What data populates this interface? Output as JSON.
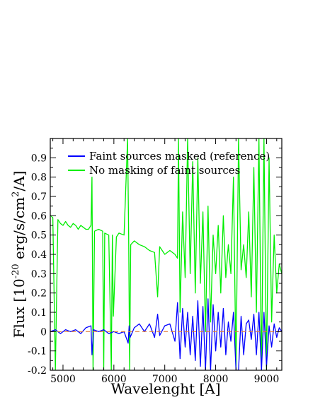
{
  "chart_data": {
    "type": "line",
    "xlabel": "Wavelenght [A]",
    "ylabel": {
      "prefix": "Flux [10",
      "exp1": "-20",
      "middle": " erg/s/cm",
      "exp2": "2",
      "suffix": "/A]"
    },
    "xlim": [
      4750,
      9300
    ],
    "ylim": [
      -0.2,
      1.0
    ],
    "xticks": [
      5000,
      6000,
      7000,
      8000,
      9000
    ],
    "xtick_labels": [
      "5000",
      "6000",
      "7000",
      "8000",
      "9000"
    ],
    "yticks": [
      -0.2,
      -0.1,
      0,
      0.1,
      0.2,
      0.3,
      0.4,
      0.5,
      0.6,
      0.7,
      0.8,
      0.9
    ],
    "ytick_labels": [
      "-0.2",
      "-0.1",
      "0",
      "0.1",
      "0.2",
      "0.3",
      "0.4",
      "0.5",
      "0.6",
      "0.7",
      "0.8",
      "0.9"
    ],
    "zero_line": {
      "y": 0,
      "color": "#e07b39",
      "style": "dashed"
    },
    "legend_position": "top-left",
    "series": [
      {
        "name": "Faint sources masked (reference)",
        "color": "#0000ff",
        "x": [
          4750,
          4850,
          4950,
          5050,
          5150,
          5250,
          5350,
          5450,
          5550,
          5570,
          5600,
          5700,
          5800,
          5900,
          6000,
          6100,
          6200,
          6280,
          6300,
          6320,
          6400,
          6500,
          6600,
          6700,
          6800,
          6860,
          6900,
          7000,
          7100,
          7200,
          7250,
          7300,
          7350,
          7400,
          7450,
          7500,
          7550,
          7600,
          7650,
          7700,
          7750,
          7800,
          7850,
          7900,
          7950,
          8000,
          8050,
          8100,
          8150,
          8200,
          8250,
          8300,
          8350,
          8400,
          8450,
          8500,
          8550,
          8600,
          8650,
          8700,
          8750,
          8800,
          8850,
          8900,
          8950,
          9000,
          9050,
          9100,
          9150,
          9200,
          9250,
          9300
        ],
        "y": [
          0.0,
          0.01,
          -0.01,
          0.01,
          0.0,
          0.01,
          -0.01,
          0.02,
          0.03,
          -0.12,
          0.01,
          0.0,
          0.01,
          -0.01,
          0.0,
          -0.01,
          0.0,
          -0.06,
          0.03,
          -0.03,
          0.02,
          0.04,
          0.0,
          0.04,
          -0.03,
          0.09,
          -0.02,
          0.03,
          0.04,
          -0.05,
          0.15,
          -0.14,
          0.12,
          -0.08,
          0.1,
          -0.12,
          0.08,
          -0.15,
          0.16,
          -0.18,
          0.13,
          -0.2,
          0.17,
          -0.2,
          0.14,
          -0.1,
          0.1,
          -0.08,
          0.12,
          -0.12,
          0.05,
          -0.05,
          0.1,
          -0.2,
          -0.2,
          0.08,
          -0.12,
          0.04,
          0.06,
          -0.04,
          0.09,
          -0.12,
          0.1,
          -0.2,
          0.1,
          -0.18,
          0.03,
          -0.08,
          0.04,
          -0.03,
          0.02,
          0.0
        ]
      },
      {
        "name": "No masking of faint sources",
        "color": "#00ee00",
        "x": [
          4750,
          4760,
          4800,
          4850,
          4900,
          4950,
          5000,
          5050,
          5100,
          5150,
          5200,
          5250,
          5300,
          5350,
          5400,
          5450,
          5500,
          5550,
          5570,
          5590,
          5620,
          5700,
          5780,
          5800,
          5820,
          5900,
          5950,
          5970,
          5990,
          6050,
          6100,
          6200,
          6270,
          6290,
          6310,
          6330,
          6400,
          6500,
          6600,
          6700,
          6800,
          6860,
          6900,
          7000,
          7100,
          7200,
          7250,
          7270,
          7300,
          7350,
          7400,
          7450,
          7500,
          7550,
          7600,
          7650,
          7700,
          7750,
          7800,
          7850,
          7900,
          7950,
          8000,
          8050,
          8100,
          8150,
          8200,
          8250,
          8300,
          8350,
          8400,
          8450,
          8500,
          8550,
          8600,
          8650,
          8700,
          8750,
          8800,
          8850,
          8900,
          8950,
          9000,
          9050,
          9100,
          9150,
          9200,
          9250,
          9300
        ],
        "y": [
          0.6,
          0.6,
          0.59,
          -0.2,
          0.58,
          0.56,
          0.55,
          0.57,
          0.55,
          0.54,
          0.56,
          0.55,
          0.53,
          0.55,
          0.54,
          0.53,
          0.53,
          0.55,
          0.8,
          -0.2,
          0.52,
          0.53,
          0.52,
          -0.2,
          0.51,
          0.5,
          -0.2,
          0.5,
          0.08,
          0.49,
          0.51,
          0.5,
          1.0,
          0.5,
          -0.2,
          0.45,
          0.47,
          0.45,
          0.44,
          0.42,
          0.41,
          0.18,
          0.44,
          0.4,
          0.42,
          0.4,
          0.38,
          1.0,
          0.1,
          0.62,
          0.28,
          1.0,
          0.3,
          0.88,
          0.2,
          0.9,
          0.25,
          0.62,
          0.0,
          0.65,
          0.05,
          0.5,
          0.3,
          0.55,
          0.2,
          0.6,
          0.28,
          0.45,
          0.3,
          0.8,
          -0.2,
          1.0,
          0.32,
          0.45,
          0.28,
          0.62,
          0.18,
          0.85,
          0.1,
          1.0,
          -0.2,
          1.0,
          -0.2,
          0.9,
          0.05,
          0.5,
          0.2,
          0.35,
          0.3
        ]
      }
    ]
  }
}
